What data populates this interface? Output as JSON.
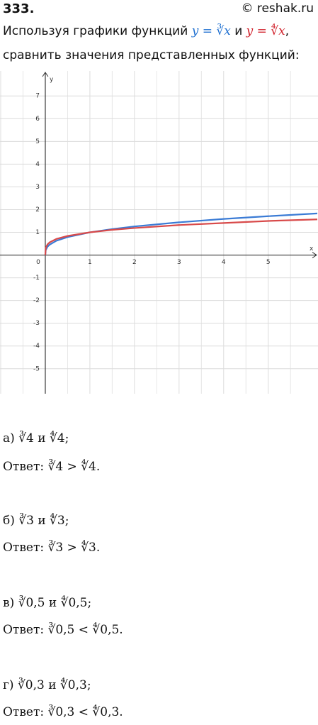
{
  "header": {
    "number": "333.",
    "copyright": "© reshak.ru"
  },
  "intro": {
    "prefix": "Используя графики функций",
    "func1": "y = ∛x",
    "and": "и",
    "func2": "y = ∜x",
    "comma": ",",
    "line2": "сравнить значения представленных функций:"
  },
  "chart_data": {
    "type": "line",
    "x_label": "x",
    "y_label": "y",
    "x": [
      0,
      0.01,
      0.05,
      0.1,
      0.25,
      0.5,
      1,
      1.5,
      2,
      3,
      4,
      5,
      6.1
    ],
    "series": [
      {
        "color": "#3a7bd5",
        "values": [
          0,
          0.22,
          0.37,
          0.46,
          0.63,
          0.79,
          1,
          1.14,
          1.26,
          1.44,
          1.59,
          1.71,
          1.83
        ]
      },
      {
        "color": "#d84a4a",
        "values": [
          0,
          0.32,
          0.47,
          0.56,
          0.71,
          0.84,
          1,
          1.11,
          1.19,
          1.32,
          1.41,
          1.5,
          1.57
        ]
      }
    ],
    "xlim": [
      -1,
      6.1
    ],
    "ylim": [
      -6.1,
      8.1
    ],
    "xticks": [
      0,
      1,
      2,
      3,
      4,
      5
    ],
    "yticks": [
      -5,
      -4,
      -3,
      -2,
      -1,
      1,
      2,
      3,
      4,
      5,
      6,
      7
    ],
    "grid": true
  },
  "items": [
    {
      "question": "а) ∛4 и ∜4;",
      "answer": "Ответ: ∛4 > ∜4."
    },
    {
      "question": "б) ∛3 и ∜3;",
      "answer": "Ответ: ∛3 > ∜3."
    },
    {
      "question": "в) ∛0,5 и ∜0,5;",
      "answer": "Ответ: ∛0,5 < ∜0,5."
    },
    {
      "question": "г) ∛0,3 и ∜0,3;",
      "answer": "Ответ: ∛0,3 < ∜0,3."
    }
  ]
}
